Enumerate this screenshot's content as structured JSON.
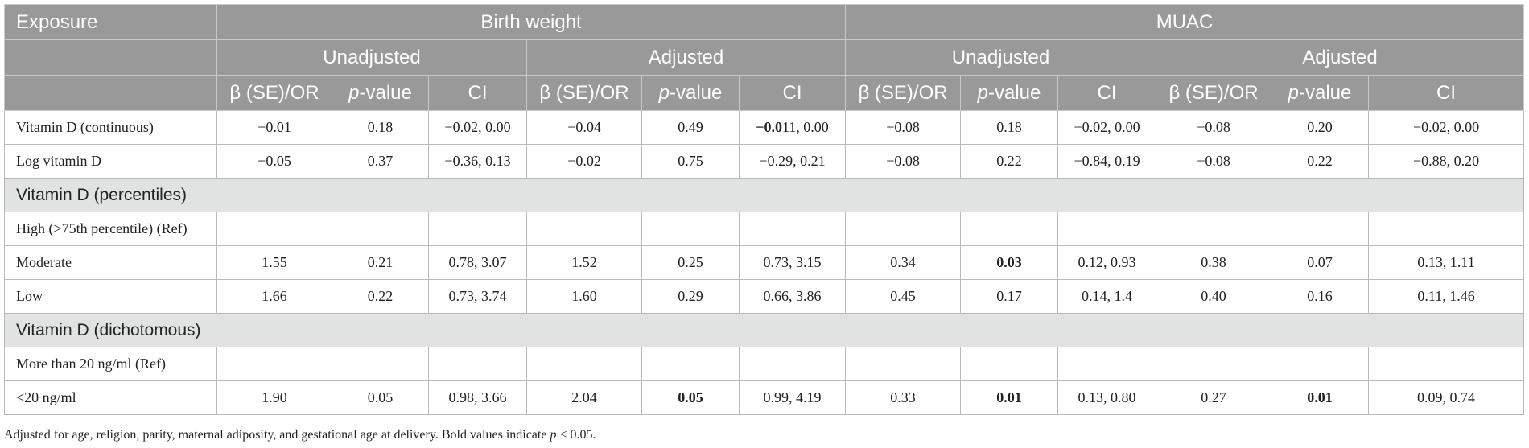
{
  "header": {
    "exposure": "Exposure",
    "groups": [
      "Birth weight",
      "MUAC"
    ],
    "subgroups": [
      "Unadjusted",
      "Adjusted",
      "Unadjusted",
      "Adjusted"
    ],
    "col_beta": "β (SE)/OR",
    "col_p_italic": "p",
    "col_p_rest": "-value",
    "col_ci": "CI"
  },
  "rows": {
    "r1": {
      "label": "Vitamin D (continuous)",
      "c": [
        "−0.01",
        "0.18",
        "−0.02, 0.00",
        "−0.04",
        "0.49",
        "",
        "−0.08",
        "0.18",
        "−0.02, 0.00",
        "−0.08",
        "0.20",
        "−0.02, 0.00"
      ],
      "ci_bold": "−0.0",
      "ci_rest": "11, 0.00"
    },
    "r2": {
      "label": "Log vitamin D",
      "c": [
        "−0.05",
        "0.37",
        "−0.36, 0.13",
        "−0.02",
        "0.75",
        "−0.29, 0.21",
        "−0.08",
        "0.22",
        "−0.84, 0.19",
        "−0.08",
        "0.22",
        "−0.88, 0.20"
      ]
    },
    "s1": {
      "label": "Vitamin D (percentiles)"
    },
    "r3": {
      "label": "High (>75th percentile) (Ref)"
    },
    "r4": {
      "label": "Moderate",
      "c": [
        "1.55",
        "0.21",
        "0.78, 3.07",
        "1.52",
        "0.25",
        "0.73, 3.15",
        "0.34",
        "0.03",
        "0.12, 0.93",
        "0.38",
        "0.07",
        "0.13, 1.11"
      ]
    },
    "r5": {
      "label": "Low",
      "c": [
        "1.66",
        "0.22",
        "0.73, 3.74",
        "1.60",
        "0.29",
        "0.66, 3.86",
        "0.45",
        "0.17",
        "0.14, 1.4",
        "0.40",
        "0.16",
        "0.11, 1.46"
      ]
    },
    "s2": {
      "label": "Vitamin D (dichotomous)"
    },
    "r6": {
      "label": "More than 20 ng/ml (Ref)"
    },
    "r7": {
      "label": "<20 ng/ml",
      "c": [
        "1.90",
        "0.05",
        "0.98, 3.66",
        "2.04",
        "0.05",
        "0.99, 4.19",
        "0.33",
        "0.01",
        "0.13, 0.80",
        "0.27",
        "0.01",
        "0.09, 0.74"
      ]
    }
  },
  "footnote": {
    "text": "Adjusted for age, religion, parity, maternal adiposity, and gestational age at delivery. Bold values indicate ",
    "p": "p",
    "tail": " < 0.05."
  }
}
